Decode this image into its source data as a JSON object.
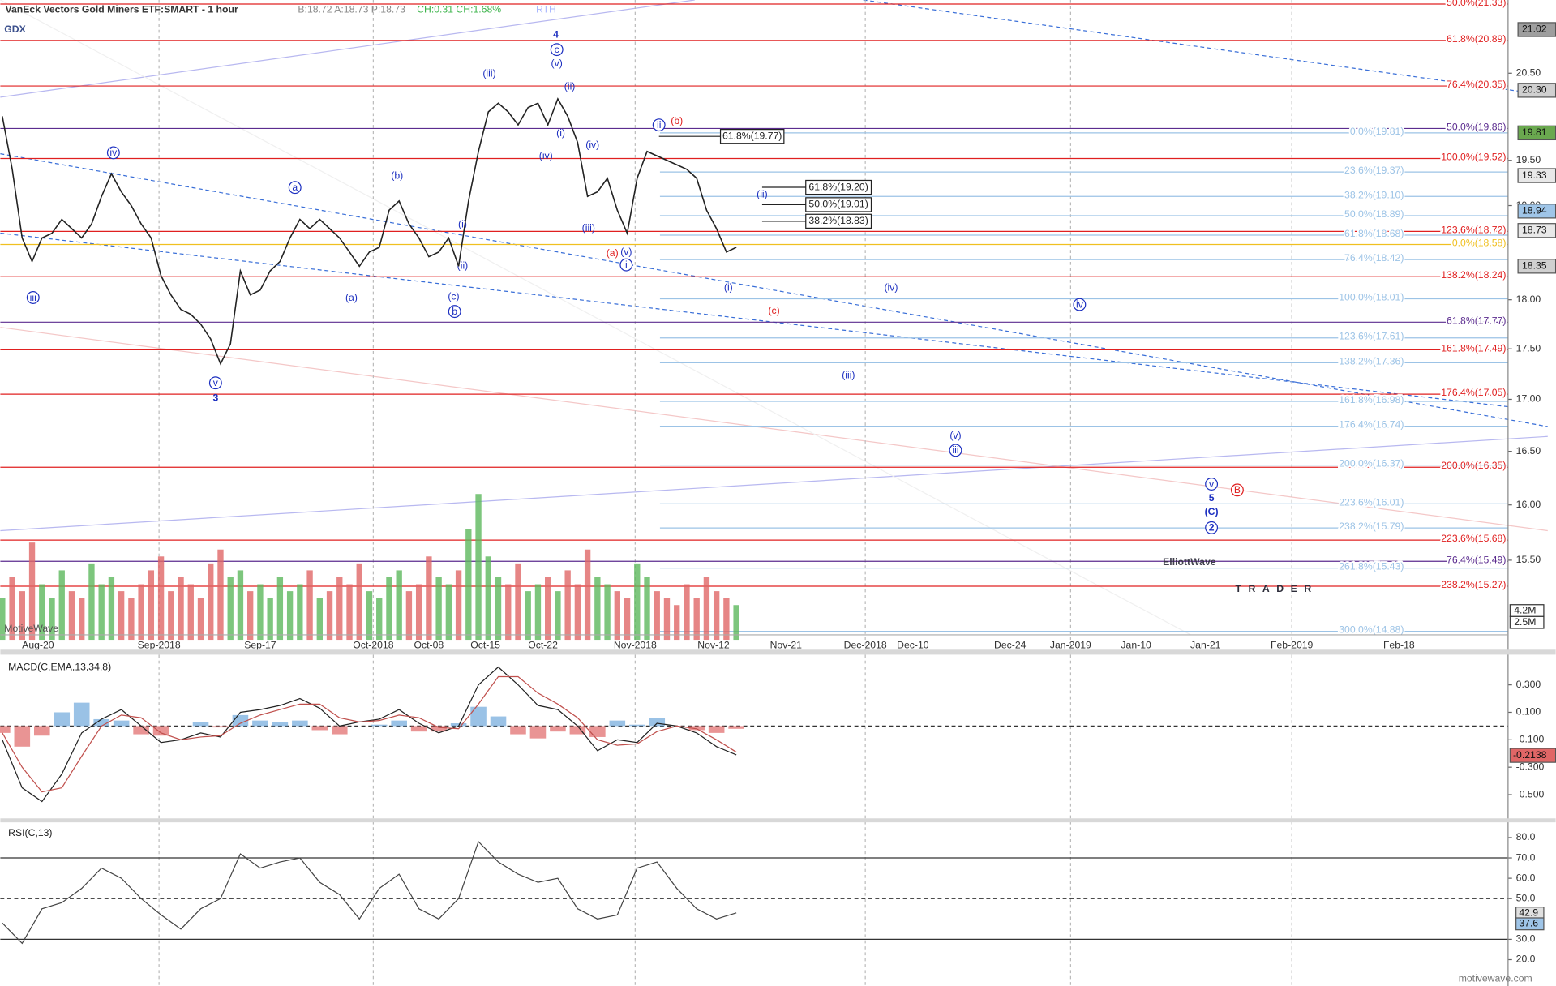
{
  "header": {
    "symbol": "GDX",
    "title": "VanEck Vectors Gold Miners ETF:SMART - 1 hour",
    "quote": "B:18.72 A:18.73 P:18.73",
    "change": "CH:0.31 CH:1.68%",
    "session": "RTH"
  },
  "watermark": {
    "brand": "MotiveWave",
    "logo_main": "ElliottWave",
    "logo_sub": "TRADER",
    "site": "motivewave.com"
  },
  "chart_data": [
    {
      "type": "line",
      "log_scale": true,
      "ylim": [
        14.85,
        21.38
      ],
      "yticks": [
        {
          "value": 15.5,
          "label": "15.50"
        },
        {
          "value": 16,
          "label": "16.00"
        },
        {
          "value": 16.5,
          "label": "16.50"
        },
        {
          "value": 17,
          "label": "17.00"
        },
        {
          "value": 17.5,
          "label": "17.50"
        },
        {
          "value": 18,
          "label": "18.00"
        },
        {
          "value": 19,
          "label": "19.00"
        },
        {
          "value": 19.5,
          "label": "19.50"
        },
        {
          "value": 20.5,
          "label": "20.50"
        }
      ],
      "x_labels": [
        "Aug-20",
        "Sep-2018",
        "Sep-17",
        "Oct-2018",
        "Oct-08",
        "Oct-15",
        "Oct-22",
        "Nov-2018",
        "Nov-12",
        "Nov-21",
        "Dec-2018",
        "Dec-10",
        "Dec-24",
        "Jan-2019",
        "Jan-10",
        "Jan-21",
        "Feb-2019",
        "Feb-18"
      ],
      "series": [
        {
          "color": "#222222",
          "values": [
            20.0,
            19.4,
            18.65,
            18.4,
            18.65,
            18.7,
            18.85,
            18.75,
            18.65,
            18.8,
            19.1,
            19.35,
            19.15,
            19.0,
            18.8,
            18.65,
            18.25,
            18.05,
            17.9,
            17.85,
            17.75,
            17.6,
            17.35,
            17.55,
            18.3,
            18.05,
            18.1,
            18.3,
            18.4,
            18.65,
            18.85,
            18.75,
            18.85,
            18.75,
            18.65,
            18.5,
            18.35,
            18.5,
            18.55,
            18.95,
            19.05,
            18.8,
            18.65,
            18.45,
            18.5,
            18.65,
            18.35,
            19.05,
            19.6,
            20.05,
            20.15,
            20.05,
            19.9,
            20.1,
            20.15,
            19.9,
            20.2,
            20.0,
            19.7,
            19.1,
            19.15,
            19.3,
            18.95,
            18.7,
            19.3,
            19.6,
            19.55,
            19.5,
            19.45,
            19.4,
            19.3,
            18.95,
            18.75,
            18.5,
            18.55
          ]
        }
      ],
      "volume": {
        "up_color": "#5cb85c",
        "down_color": "#e06666",
        "values": [
          6,
          9,
          7,
          14,
          8,
          6,
          10,
          7,
          6,
          11,
          8,
          9,
          7,
          6,
          8,
          10,
          12,
          7,
          9,
          8,
          6,
          11,
          13,
          9,
          10,
          7,
          8,
          6,
          9,
          7,
          8,
          10,
          6,
          7,
          9,
          8,
          11,
          7,
          6,
          9,
          10,
          7,
          8,
          12,
          9,
          8,
          10,
          16,
          21,
          12,
          9,
          8,
          11,
          7,
          8,
          9,
          7,
          10,
          8,
          13,
          9,
          8,
          7,
          6,
          11,
          9,
          7,
          6,
          5,
          8,
          6,
          9,
          7,
          6,
          5
        ]
      },
      "volume_ticks": [
        {
          "value": 4.2,
          "label": "4.2M"
        },
        {
          "value": 2.5,
          "label": "2.5M"
        }
      ],
      "price_tags": [
        {
          "value": 21.02,
          "color": "#9e9e9e"
        },
        {
          "value": 20.3,
          "label": "20.30",
          "color": "#d0d0d0"
        },
        {
          "value": 19.81,
          "color": "#6aa84f"
        },
        {
          "value": 19.33,
          "color": "#e8e8e8"
        },
        {
          "value": 18.94,
          "color": "#9fc5e8"
        },
        {
          "value": 18.73,
          "color": "#e8e8e8"
        },
        {
          "value": 18.35,
          "color": "#d0d0d0"
        }
      ],
      "level_sets": [
        {
          "color": "#e02020",
          "items": [
            {
              "label": "50.0%(21.33)",
              "value": 21.33
            },
            {
              "label": "61.8%(20.89)",
              "value": 20.89
            },
            {
              "label": "76.4%(20.35)",
              "value": 20.35
            },
            {
              "label": "100.0%(19.52)",
              "value": 19.52
            },
            {
              "label": "123.6%(18.72)",
              "value": 18.72
            },
            {
              "label": "138.2%(18.24)",
              "value": 18.24
            },
            {
              "label": "161.8%(17.49)",
              "value": 17.49
            },
            {
              "label": "176.4%(17.05)",
              "value": 17.05
            },
            {
              "label": "200.0%(16.35)",
              "value": 16.35
            },
            {
              "label": "223.6%(15.68)",
              "value": 15.68
            },
            {
              "label": "238.2%(15.27)",
              "value": 15.27
            }
          ]
        },
        {
          "color": "#5b2c8f",
          "items": [
            {
              "label": "50.0%(19.86)",
              "value": 19.86
            },
            {
              "label": "61.8%(17.77)",
              "value": 17.77
            },
            {
              "label": "76.4%(15.49)",
              "value": 15.49
            }
          ]
        },
        {
          "color": "#9cc3e6",
          "items": [
            {
              "label": "0.0%(19.81)",
              "value": 19.81
            },
            {
              "label": "23.6%(19.37)",
              "value": 19.37
            },
            {
              "label": "38.2%(19.10)",
              "value": 19.1
            },
            {
              "label": "50.0%(18.89)",
              "value": 18.89
            },
            {
              "label": "61.8%(18.68)",
              "value": 18.68
            },
            {
              "label": "76.4%(18.42)",
              "value": 18.42
            },
            {
              "label": "100.0%(18.01)",
              "value": 18.01
            },
            {
              "label": "123.6%(17.61)",
              "value": 17.61
            },
            {
              "label": "138.2%(17.36)",
              "value": 17.36
            },
            {
              "label": "161.8%(16.98)",
              "value": 16.98
            },
            {
              "label": "176.4%(16.74)",
              "value": 16.74
            },
            {
              "label": "200.0%(16.37)",
              "value": 16.37
            },
            {
              "label": "223.6%(16.01)",
              "value": 16.01
            },
            {
              "label": "238.2%(15.79)",
              "value": 15.79
            },
            {
              "label": "261.8%(15.43)",
              "value": 15.43
            },
            {
              "label": "300.0%(14.88)",
              "value": 14.88
            }
          ]
        },
        {
          "color": "#f0c020",
          "items": [
            {
              "label": "0.0%(18.58)",
              "value": 18.58
            }
          ]
        },
        {
          "color": "#222222",
          "items": [
            {
              "label": "61.8%(19.77)",
              "value": 19.77
            },
            {
              "label": "61.8%(19.20)",
              "value": 19.2
            },
            {
              "label": "50.0%(19.01)",
              "value": 19.01
            },
            {
              "label": "38.2%(18.83)",
              "value": 18.83
            }
          ]
        }
      ],
      "waves": [
        "4",
        "c",
        "(v)",
        "(iii)",
        "(ii)",
        "(i)",
        "(iv)",
        "(iv)",
        "(iii)",
        "(v)",
        "i",
        "(a)",
        "ii",
        "(b)",
        "(ii)",
        "(i)",
        "(c)",
        "(iv)",
        "iv",
        "(iii)",
        "(v)",
        "iii",
        "v",
        "5",
        "(C)",
        "2",
        "B",
        "iv",
        "iii",
        "a",
        "(b)",
        "(a)",
        "(i)",
        "(ii)",
        "(c)",
        "b",
        "v",
        "3"
      ]
    },
    {
      "type": "macd",
      "title": "MACD(C,EMA,13,34,8)",
      "ylim": [
        -0.68,
        0.52
      ],
      "yticks": [
        {
          "value": 0.3,
          "label": "0.300"
        },
        {
          "value": 0.1,
          "label": "0.100"
        },
        {
          "value": -0.1,
          "label": "-0.100"
        },
        {
          "value": -0.3,
          "label": "-0.300"
        },
        {
          "value": -0.5,
          "label": "-0.500"
        }
      ],
      "tag": -0.2138,
      "series": [
        {
          "color": "#222222",
          "values": [
            -0.1,
            -0.45,
            -0.55,
            -0.35,
            -0.05,
            0.05,
            0.12,
            0.0,
            -0.12,
            -0.1,
            -0.05,
            -0.08,
            0.1,
            0.12,
            0.15,
            0.2,
            0.13,
            0.0,
            0.03,
            0.05,
            0.12,
            0.02,
            -0.05,
            0.0,
            0.3,
            0.43,
            0.3,
            0.15,
            0.12,
            0.0,
            -0.18,
            -0.1,
            -0.12,
            0.02,
            0.0,
            -0.05,
            -0.15,
            -0.21
          ]
        },
        {
          "color": "#c0504d",
          "values": [
            -0.05,
            -0.3,
            -0.48,
            -0.45,
            -0.22,
            0.0,
            0.08,
            0.06,
            -0.05,
            -0.1,
            -0.08,
            -0.07,
            0.02,
            0.08,
            0.12,
            0.16,
            0.16,
            0.06,
            0.03,
            0.04,
            0.08,
            0.06,
            -0.01,
            -0.02,
            0.16,
            0.36,
            0.36,
            0.24,
            0.16,
            0.06,
            -0.1,
            -0.14,
            -0.13,
            -0.04,
            0.0,
            -0.02,
            -0.1,
            -0.19
          ]
        }
      ],
      "histogram": {
        "up_color": "#6fa8dc",
        "down_color": "#e06666",
        "values": [
          -0.05,
          -0.15,
          -0.07,
          0.1,
          0.17,
          0.05,
          0.04,
          -0.06,
          -0.07,
          0.0,
          0.03,
          -0.01,
          0.08,
          0.04,
          0.03,
          0.04,
          -0.03,
          -0.06,
          0.0,
          0.01,
          0.04,
          -0.04,
          -0.04,
          0.02,
          0.14,
          0.07,
          -0.06,
          -0.09,
          -0.04,
          -0.06,
          -0.08,
          0.04,
          0.01,
          0.06,
          0.0,
          -0.03,
          -0.05,
          -0.02
        ]
      }
    },
    {
      "type": "rsi",
      "title": "RSI(C,13)",
      "ylim": [
        9,
        87
      ],
      "yticks": [
        {
          "value": 80,
          "label": "80.0"
        },
        {
          "value": 70,
          "label": "70.0"
        },
        {
          "value": 60,
          "label": "60.0"
        },
        {
          "value": 50,
          "label": "50.0"
        },
        {
          "value": 30,
          "label": "30.0"
        },
        {
          "value": 20,
          "label": "20.0"
        }
      ],
      "bands": [
        70,
        50,
        30
      ],
      "tags": [
        {
          "value": 42.9,
          "color": "#e0e0e0"
        },
        {
          "value": 37.6,
          "color": "#9fc5e8"
        }
      ],
      "series": [
        {
          "color": "#444444",
          "values": [
            38,
            28,
            45,
            48,
            55,
            65,
            60,
            50,
            42,
            35,
            45,
            50,
            72,
            65,
            68,
            70,
            58,
            52,
            40,
            55,
            62,
            45,
            40,
            50,
            78,
            68,
            62,
            58,
            60,
            45,
            40,
            42,
            65,
            68,
            55,
            45,
            40,
            43
          ]
        }
      ]
    }
  ]
}
